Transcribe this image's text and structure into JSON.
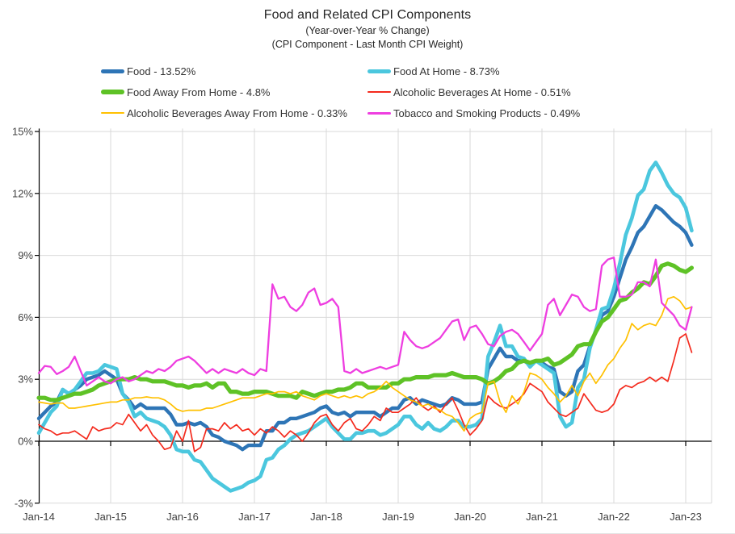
{
  "chart_data": {
    "type": "line",
    "title": "Food and Related CPI Components",
    "subtitle1": "(Year-over-Year % Change)",
    "subtitle2": "(CPI Component - Last Month CPI Weight)",
    "grid": true,
    "legend_position": "top-two-columns",
    "grid_color": "#D9D9D9",
    "axis_color": "#000000",
    "label_color": "#404040",
    "ylim": [
      -3,
      15
    ],
    "y_ticks": [
      {
        "value": 15,
        "label": "15%"
      },
      {
        "value": 12,
        "label": "12%"
      },
      {
        "value": 9,
        "label": "9%"
      },
      {
        "value": 6,
        "label": "6%"
      },
      {
        "value": 3,
        "label": "3%"
      },
      {
        "value": 0,
        "label": "0%"
      },
      {
        "value": -3,
        "label": "-3%"
      }
    ],
    "x_tick_labels": [
      "Jan-14",
      "Jan-15",
      "Jan-16",
      "Jan-17",
      "Jan-18",
      "Jan-19",
      "Jan-20",
      "Jan-21",
      "Jan-22",
      "Jan-23"
    ],
    "x_months_per_tick": 12,
    "x_start": "Jan-14",
    "x_frequency": "monthly",
    "series": [
      {
        "name": "Food",
        "legend_label": "Food - 13.52%",
        "color": "#2E75B6",
        "width": 4.4,
        "values": [
          1.1,
          1.4,
          1.7,
          1.9,
          2.5,
          2.3,
          2.5,
          2.7,
          3.0,
          3.1,
          3.2,
          3.4,
          3.2,
          3.0,
          2.3,
          2.0,
          1.6,
          1.8,
          1.6,
          1.6,
          1.6,
          1.6,
          1.3,
          0.8,
          0.8,
          0.9,
          0.8,
          0.9,
          0.7,
          0.3,
          0.2,
          0.0,
          -0.1,
          -0.2,
          -0.4,
          -0.2,
          -0.2,
          -0.2,
          0.5,
          0.5,
          0.9,
          0.9,
          1.1,
          1.1,
          1.2,
          1.3,
          1.4,
          1.6,
          1.7,
          1.4,
          1.3,
          1.4,
          1.2,
          1.4,
          1.4,
          1.4,
          1.4,
          1.2,
          1.4,
          1.6,
          1.6,
          2.0,
          2.1,
          1.8,
          2.0,
          1.9,
          1.8,
          1.7,
          1.8,
          2.1,
          2.0,
          1.8,
          1.8,
          1.8,
          1.9,
          3.5,
          4.0,
          4.5,
          4.1,
          4.1,
          3.9,
          3.9,
          3.7,
          3.9,
          3.8,
          3.6,
          3.5,
          2.4,
          2.2,
          2.4,
          3.4,
          3.7,
          4.6,
          5.3,
          6.1,
          6.3,
          7.0,
          7.9,
          8.8,
          9.4,
          10.1,
          10.4,
          10.9,
          11.4,
          11.2,
          10.9,
          10.6,
          10.4,
          10.1,
          9.5
        ]
      },
      {
        "name": "Food At Home",
        "legend_label": "Food At Home - 8.73%",
        "color": "#4BC7DE",
        "width": 4.6,
        "values": [
          0.4,
          0.9,
          1.4,
          1.7,
          2.5,
          2.3,
          2.5,
          2.9,
          3.3,
          3.3,
          3.4,
          3.7,
          3.6,
          3.5,
          2.3,
          1.9,
          1.2,
          1.4,
          1.1,
          1.0,
          0.9,
          0.7,
          0.3,
          -0.4,
          -0.5,
          -0.5,
          -0.9,
          -1.0,
          -1.4,
          -1.8,
          -2.0,
          -2.2,
          -2.4,
          -2.3,
          -2.2,
          -2.0,
          -1.9,
          -1.7,
          -0.9,
          -0.8,
          -0.4,
          -0.2,
          0.1,
          0.3,
          0.4,
          0.5,
          0.7,
          0.9,
          1.1,
          0.7,
          0.4,
          0.1,
          0.1,
          0.4,
          0.4,
          0.5,
          0.5,
          0.3,
          0.4,
          0.6,
          0.8,
          1.2,
          1.2,
          0.8,
          0.6,
          0.9,
          0.6,
          0.5,
          0.7,
          1.0,
          1.0,
          0.7,
          0.7,
          0.8,
          1.1,
          4.1,
          4.8,
          5.6,
          4.6,
          4.6,
          4.1,
          4.0,
          3.6,
          3.9,
          3.7,
          3.5,
          3.3,
          1.2,
          0.7,
          0.9,
          2.6,
          3.0,
          4.5,
          5.4,
          6.4,
          6.5,
          7.4,
          8.6,
          10.0,
          10.8,
          11.9,
          12.2,
          13.1,
          13.5,
          13.0,
          12.4,
          12.0,
          11.8,
          11.3,
          10.2
        ]
      },
      {
        "name": "Food Away From Home",
        "legend_label": "Food Away From Home - 4.8%",
        "color": "#5EC226",
        "width": 5.2,
        "values": [
          2.1,
          2.1,
          2.0,
          2.0,
          2.1,
          2.2,
          2.3,
          2.3,
          2.4,
          2.5,
          2.7,
          2.8,
          2.9,
          3.0,
          3.0,
          3.0,
          3.1,
          3.0,
          3.0,
          2.9,
          2.9,
          2.9,
          2.8,
          2.7,
          2.7,
          2.6,
          2.7,
          2.7,
          2.8,
          2.6,
          2.8,
          2.8,
          2.4,
          2.4,
          2.3,
          2.3,
          2.4,
          2.4,
          2.4,
          2.3,
          2.2,
          2.2,
          2.2,
          2.1,
          2.4,
          2.3,
          2.2,
          2.3,
          2.4,
          2.4,
          2.5,
          2.5,
          2.6,
          2.8,
          2.8,
          2.6,
          2.6,
          2.6,
          2.6,
          2.8,
          2.8,
          3.0,
          3.0,
          3.1,
          3.1,
          3.1,
          3.2,
          3.2,
          3.2,
          3.3,
          3.2,
          3.1,
          3.1,
          3.1,
          3.0,
          2.8,
          2.9,
          3.1,
          3.4,
          3.5,
          3.8,
          3.9,
          3.8,
          3.9,
          3.9,
          4.0,
          3.7,
          3.8,
          4.0,
          4.2,
          4.6,
          4.7,
          4.7,
          5.3,
          5.8,
          6.0,
          6.4,
          6.8,
          6.9,
          7.2,
          7.4,
          7.7,
          7.6,
          8.0,
          8.5,
          8.6,
          8.5,
          8.3,
          8.2,
          8.4
        ]
      },
      {
        "name": "Alcoholic Beverages At Home",
        "legend_label": "Alcoholic Beverages At Home - 0.51%",
        "color": "#F42A1D",
        "width": 1.7,
        "values": [
          0.8,
          0.6,
          0.5,
          0.3,
          0.4,
          0.4,
          0.5,
          0.3,
          0.1,
          0.7,
          0.5,
          0.6,
          0.65,
          0.9,
          0.8,
          1.3,
          0.9,
          0.5,
          0.8,
          0.3,
          0.0,
          -0.4,
          -0.3,
          0.5,
          0.0,
          1.0,
          -0.5,
          -0.3,
          0.6,
          0.6,
          0.5,
          0.9,
          0.6,
          0.8,
          0.5,
          0.6,
          0.3,
          0.6,
          0.4,
          0.7,
          0.5,
          0.2,
          0.5,
          0.3,
          0.0,
          0.4,
          0.9,
          1.2,
          1.3,
          0.8,
          0.5,
          0.9,
          1.1,
          0.6,
          0.5,
          0.8,
          1.2,
          1.0,
          1.6,
          1.4,
          1.4,
          1.6,
          1.8,
          2.1,
          1.7,
          1.5,
          1.7,
          1.4,
          1.8,
          2.1,
          1.5,
          0.8,
          0.3,
          0.6,
          1.0,
          2.2,
          1.9,
          1.7,
          1.6,
          1.8,
          2.0,
          2.3,
          2.8,
          2.6,
          2.4,
          1.9,
          1.6,
          1.3,
          1.2,
          1.4,
          1.6,
          2.3,
          1.9,
          1.5,
          1.4,
          1.5,
          1.8,
          2.5,
          2.7,
          2.6,
          2.8,
          2.9,
          3.1,
          2.9,
          3.1,
          2.9,
          3.9,
          5.0,
          5.2,
          4.3
        ]
      },
      {
        "name": "Alcoholic Beverages Away From Home",
        "legend_label": "Alcoholic Beverages Away From Home - 0.33%",
        "color": "#FFC000",
        "width": 1.7,
        "values": [
          1.9,
          1.85,
          1.8,
          1.85,
          1.85,
          1.6,
          1.6,
          1.65,
          1.7,
          1.75,
          1.8,
          1.85,
          1.9,
          1.9,
          2.0,
          2.0,
          2.1,
          2.1,
          2.15,
          2.1,
          2.1,
          2.0,
          1.8,
          1.55,
          1.45,
          1.5,
          1.5,
          1.5,
          1.6,
          1.6,
          1.7,
          1.8,
          1.9,
          2.0,
          2.1,
          2.1,
          2.1,
          2.2,
          2.3,
          2.3,
          2.4,
          2.4,
          2.3,
          2.4,
          2.2,
          2.1,
          2.0,
          2.2,
          2.3,
          2.2,
          2.1,
          2.2,
          2.1,
          2.2,
          2.1,
          2.3,
          2.4,
          2.6,
          2.9,
          2.6,
          2.4,
          2.2,
          2.0,
          1.9,
          1.7,
          1.8,
          1.6,
          1.5,
          1.3,
          1.2,
          0.9,
          0.5,
          1.1,
          1.3,
          1.4,
          2.8,
          2.9,
          1.9,
          1.4,
          2.2,
          1.8,
          2.4,
          3.3,
          3.2,
          3.0,
          2.6,
          2.3,
          1.9,
          2.2,
          2.7,
          2.2,
          2.9,
          3.3,
          2.8,
          3.2,
          3.7,
          4.0,
          4.5,
          4.9,
          5.7,
          5.4,
          5.6,
          5.7,
          5.6,
          6.1,
          6.9,
          7.0,
          6.8,
          6.4,
          6.5
        ]
      },
      {
        "name": "Tobacco and Smoking Products",
        "legend_label": "Tobacco and Smoking Products - 0.49%",
        "color": "#EE3EE0",
        "width": 2.3,
        "values": [
          3.3,
          3.65,
          3.6,
          3.25,
          3.4,
          3.6,
          4.1,
          3.4,
          2.7,
          2.9,
          3.1,
          2.9,
          2.8,
          3.0,
          3.1,
          2.9,
          3.0,
          3.2,
          3.4,
          3.3,
          3.5,
          3.4,
          3.6,
          3.9,
          4.0,
          4.1,
          3.9,
          3.6,
          3.3,
          3.5,
          3.3,
          3.5,
          3.4,
          3.3,
          3.5,
          3.3,
          3.2,
          3.5,
          3.4,
          7.6,
          6.9,
          7.0,
          6.5,
          6.3,
          6.6,
          7.2,
          7.4,
          6.6,
          6.7,
          6.9,
          6.5,
          3.4,
          3.3,
          3.5,
          3.3,
          3.4,
          3.5,
          3.6,
          3.5,
          3.6,
          3.7,
          5.3,
          4.9,
          4.6,
          4.5,
          4.6,
          4.8,
          5.0,
          5.4,
          5.8,
          5.9,
          4.9,
          5.5,
          5.6,
          5.2,
          4.7,
          4.6,
          5.1,
          5.3,
          5.4,
          5.2,
          4.8,
          4.4,
          4.8,
          5.2,
          6.6,
          6.9,
          6.1,
          6.6,
          7.1,
          7.0,
          6.5,
          6.3,
          6.4,
          8.5,
          8.8,
          8.9,
          7.0,
          7.0,
          7.1,
          7.7,
          7.7,
          7.5,
          8.8,
          6.7,
          6.4,
          6.1,
          5.6,
          5.4,
          6.5
        ]
      }
    ]
  }
}
